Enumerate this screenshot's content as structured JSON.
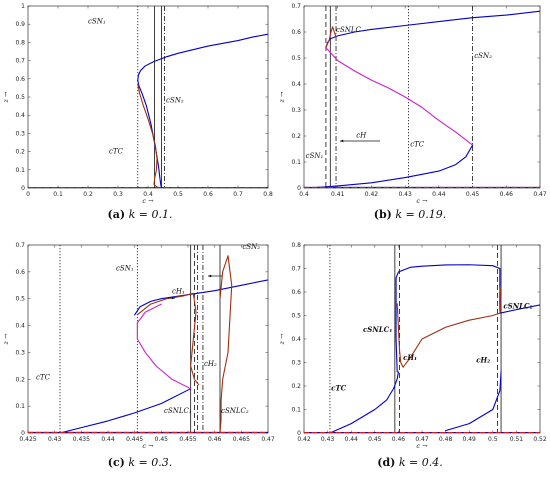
{
  "chart_data": [
    {
      "type": "line",
      "caption": {
        "label": "(a)",
        "text": " k = 0.1."
      },
      "xlabel": "c →",
      "ylabel": "z →",
      "xlim": [
        0,
        0.8
      ],
      "ylim": [
        0,
        1
      ],
      "xticks": [
        0,
        0.1,
        0.2,
        0.3,
        0.4,
        0.5,
        0.6,
        0.7,
        0.8
      ],
      "yticks": [
        0,
        0.1,
        0.2,
        0.3,
        0.4,
        0.5,
        0.6,
        0.7,
        0.8,
        0.9,
        1
      ],
      "xtick_labels": [
        "0",
        "0.1",
        "0.2",
        "0.3",
        "0.4",
        "0.5",
        "0.6",
        "0.7",
        "0.8"
      ],
      "ytick_labels": [
        "0",
        "0.1",
        "0.2",
        "0.3",
        "0.4",
        "0.5",
        "0.6",
        "0.7",
        "0.8",
        "0.9",
        "1"
      ],
      "series": [
        {
          "color": "#0000cc",
          "style": "solid",
          "x": [
            0.366,
            0.368,
            0.375,
            0.39,
            0.42,
            0.46,
            0.5,
            0.55,
            0.6,
            0.65,
            0.7,
            0.75,
            0.8
          ],
          "y": [
            0.59,
            0.62,
            0.645,
            0.67,
            0.695,
            0.72,
            0.74,
            0.76,
            0.78,
            0.795,
            0.81,
            0.83,
            0.845
          ]
        },
        {
          "color": "#0000cc",
          "style": "solid",
          "x": [
            0.366,
            0.37,
            0.38,
            0.395,
            0.41,
            0.425,
            0.435,
            0.44,
            0.443,
            0.445
          ],
          "y": [
            0.59,
            0.56,
            0.52,
            0.45,
            0.35,
            0.22,
            0.12,
            0.05,
            0.015,
            0
          ]
        },
        {
          "color": "#a03010",
          "style": "solid",
          "x": [
            0.366,
            0.372,
            0.385,
            0.4,
            0.415,
            0.425,
            0.43,
            0.428,
            0.422,
            0.42,
            0.43,
            0.445
          ],
          "y": [
            0.57,
            0.52,
            0.45,
            0.38,
            0.3,
            0.23,
            0.16,
            0.1,
            0.05,
            0.02,
            0.005,
            0
          ]
        },
        {
          "color": "#0000cc",
          "style": "solid",
          "x": [
            0,
            0.8
          ],
          "y": [
            0.002,
            0.002
          ]
        },
        {
          "color": "#cc2020",
          "style": "dashed",
          "x": [
            0,
            0.8
          ],
          "y": [
            0.002,
            0.002
          ]
        }
      ],
      "vlines": [
        {
          "x": 0.366,
          "style": "dotted",
          "label": "cSN₁"
        },
        {
          "x": 0.422,
          "style": "solid",
          "label": ""
        },
        {
          "x": 0.445,
          "style": "solid",
          "label": ""
        },
        {
          "x": 0.455,
          "style": "dashdot",
          "label": "cSN₂"
        }
      ],
      "annotations": [
        {
          "text": "cSN₁",
          "x": 0.2,
          "y": 0.905
        },
        {
          "text": "cSN₂",
          "x": 0.46,
          "y": 0.47
        },
        {
          "text": "cTC",
          "x": 0.27,
          "y": 0.19
        }
      ]
    },
    {
      "type": "line",
      "caption": {
        "label": "(b)",
        "text": " k = 0.19."
      },
      "xlabel": "c →",
      "ylabel": "z →",
      "xlim": [
        0.4,
        0.47
      ],
      "ylim": [
        0,
        0.7
      ],
      "xticks": [
        0.4,
        0.41,
        0.42,
        0.43,
        0.44,
        0.45,
        0.46,
        0.47
      ],
      "yticks": [
        0,
        0.1,
        0.2,
        0.3,
        0.4,
        0.5,
        0.6,
        0.7
      ],
      "xtick_labels": [
        "0.4",
        "0.41",
        "0.42",
        "0.43",
        "0.44",
        "0.45",
        "0.46",
        "0.47"
      ],
      "ytick_labels": [
        "0",
        "0.1",
        "0.2",
        "0.3",
        "0.4",
        "0.5",
        "0.6",
        "0.7"
      ],
      "series": [
        {
          "color": "#0000cc",
          "style": "solid",
          "x": [
            0.4065,
            0.407,
            0.408,
            0.41,
            0.415,
            0.42,
            0.43,
            0.44,
            0.45,
            0.46,
            0.47
          ],
          "y": [
            0.54,
            0.56,
            0.575,
            0.585,
            0.6,
            0.61,
            0.625,
            0.64,
            0.655,
            0.665,
            0.68
          ]
        },
        {
          "color": "#cc22cc",
          "style": "solid",
          "x": [
            0.4065,
            0.41,
            0.415,
            0.42,
            0.425,
            0.43,
            0.435,
            0.44,
            0.445,
            0.45
          ],
          "y": [
            0.54,
            0.49,
            0.45,
            0.415,
            0.385,
            0.35,
            0.31,
            0.26,
            0.215,
            0.165
          ]
        },
        {
          "color": "#0000cc",
          "style": "solid",
          "x": [
            0.45,
            0.448,
            0.445,
            0.44,
            0.43,
            0.42,
            0.41,
            0.405,
            0.401
          ],
          "y": [
            0.165,
            0.12,
            0.09,
            0.065,
            0.04,
            0.02,
            0.008,
            0.003,
            0
          ]
        },
        {
          "color": "#a03010",
          "style": "solid",
          "x": [
            0.4065,
            0.4075,
            0.408,
            0.4085,
            0.409,
            0.4095
          ],
          "y": [
            0.54,
            0.57,
            0.6,
            0.62,
            0.6,
            0.58
          ]
        },
        {
          "color": "#0000cc",
          "style": "solid",
          "x": [
            0.4,
            0.47
          ],
          "y": [
            0.002,
            0.002
          ]
        },
        {
          "color": "#cc2020",
          "style": "dashed",
          "x": [
            0.4,
            0.47
          ],
          "y": [
            0.002,
            0.002
          ]
        }
      ],
      "vlines": [
        {
          "x": 0.4065,
          "style": "dashed",
          "label": ""
        },
        {
          "x": 0.4078,
          "style": "solid",
          "label": ""
        },
        {
          "x": 0.4095,
          "style": "dashdot",
          "label": ""
        },
        {
          "x": 0.431,
          "style": "dotted",
          "label": "cTC"
        },
        {
          "x": 0.45,
          "style": "dashdot",
          "label": "cSN₂"
        }
      ],
      "annotations": [
        {
          "text": "cSNLC",
          "x": 0.4095,
          "y": 0.6
        },
        {
          "text": "cSN₁",
          "x": 0.4005,
          "y": 0.115
        },
        {
          "text": "cH",
          "x": 0.4155,
          "y": 0.195
        },
        {
          "text": "cTC",
          "x": 0.4315,
          "y": 0.16
        },
        {
          "text": "cSN₂",
          "x": 0.4505,
          "y": 0.5
        }
      ]
    },
    {
      "type": "line",
      "caption": {
        "label": "(c)",
        "text": " k = 0.3."
      },
      "xlabel": "c →",
      "ylabel": "z →",
      "xlim": [
        0.425,
        0.47
      ],
      "ylim": [
        0,
        0.7
      ],
      "xticks": [
        0.425,
        0.43,
        0.435,
        0.44,
        0.445,
        0.45,
        0.455,
        0.46,
        0.465,
        0.47
      ],
      "yticks": [
        0,
        0.1,
        0.2,
        0.3,
        0.4,
        0.5,
        0.6,
        0.7
      ],
      "xtick_labels": [
        "0.425",
        "0.43",
        "0.435",
        "0.44",
        "0.445",
        "0.45",
        "0.455",
        "0.46",
        "0.465",
        "0.47"
      ],
      "ytick_labels": [
        "0",
        "0.1",
        "0.2",
        "0.3",
        "0.4",
        "0.5",
        "0.6",
        "0.7"
      ],
      "series": [
        {
          "color": "#0000cc",
          "style": "solid",
          "x": [
            0.431,
            0.435,
            0.44,
            0.445,
            0.45,
            0.4555
          ],
          "y": [
            0,
            0.02,
            0.045,
            0.075,
            0.11,
            0.165
          ]
        },
        {
          "color": "#cc22cc",
          "style": "solid",
          "x": [
            0.4555,
            0.452,
            0.449,
            0.447,
            0.4455,
            0.4455,
            0.447,
            0.45
          ],
          "y": [
            0.165,
            0.2,
            0.25,
            0.3,
            0.35,
            0.41,
            0.45,
            0.48
          ]
        },
        {
          "color": "#0000cc",
          "style": "solid",
          "x": [
            0.445,
            0.446,
            0.448,
            0.45,
            0.455,
            0.46,
            0.465,
            0.47
          ],
          "y": [
            0.44,
            0.47,
            0.49,
            0.5,
            0.515,
            0.53,
            0.55,
            0.57
          ]
        },
        {
          "color": "#a03010",
          "style": "solid",
          "x": [
            0.4455,
            0.448,
            0.451,
            0.454,
            0.456,
            0.4565,
            0.456,
            0.4555,
            0.4562,
            0.457
          ],
          "y": [
            0.44,
            0.48,
            0.5,
            0.51,
            0.52,
            0.45,
            0.35,
            0.25,
            0.2,
            0.18
          ]
        },
        {
          "color": "#a03010",
          "style": "solid",
          "x": [
            0.461,
            0.4612,
            0.4612,
            0.4615,
            0.4625,
            0.4632,
            0.4625,
            0.4615,
            0.461
          ],
          "y": [
            0,
            0.05,
            0.12,
            0.2,
            0.3,
            0.55,
            0.66,
            0.6,
            0.5
          ]
        },
        {
          "color": "#0000cc",
          "style": "solid",
          "x": [
            0.425,
            0.47
          ],
          "y": [
            0.002,
            0.002
          ]
        },
        {
          "color": "#cc2020",
          "style": "dashed",
          "x": [
            0.425,
            0.47
          ],
          "y": [
            0.002,
            0.002
          ]
        }
      ],
      "vlines": [
        {
          "x": 0.431,
          "style": "dotted",
          "label": "cTC"
        },
        {
          "x": 0.4455,
          "style": "dotted",
          "label": "cSN₁"
        },
        {
          "x": 0.4555,
          "style": "solid",
          "label": ""
        },
        {
          "x": 0.4562,
          "style": "dashed",
          "label": ""
        },
        {
          "x": 0.4568,
          "style": "dashdot",
          "label": ""
        },
        {
          "x": 0.4578,
          "style": "dashdot",
          "label": ""
        },
        {
          "x": 0.461,
          "style": "solid",
          "label": ""
        }
      ],
      "annotations": [
        {
          "text": "cSN₁",
          "x": 0.4415,
          "y": 0.605
        },
        {
          "text": "cTC",
          "x": 0.4265,
          "y": 0.2
        },
        {
          "text": "cH₁",
          "x": 0.452,
          "y": 0.52
        },
        {
          "text": "cH₂",
          "x": 0.458,
          "y": 0.25
        },
        {
          "text": "cSNLC₁",
          "x": 0.4505,
          "y": 0.075
        },
        {
          "text": "cSNLC₂",
          "x": 0.4612,
          "y": 0.075
        },
        {
          "text": "cSN₂",
          "x": 0.4652,
          "y": 0.685
        }
      ]
    },
    {
      "type": "line",
      "caption": {
        "label": "(d)",
        "text": " k = 0.4."
      },
      "xlabel": "c →",
      "ylabel": "z →",
      "xlim": [
        0.42,
        0.52
      ],
      "ylim": [
        0,
        0.8
      ],
      "xticks": [
        0.42,
        0.43,
        0.44,
        0.45,
        0.46,
        0.47,
        0.48,
        0.49,
        0.5,
        0.51,
        0.52
      ],
      "yticks": [
        0,
        0.1,
        0.2,
        0.3,
        0.4,
        0.5,
        0.6,
        0.7,
        0.8
      ],
      "xtick_labels": [
        "0.42",
        "0.43",
        "0.44",
        "0.45",
        "0.46",
        "0.47",
        "0.48",
        "0.49",
        "0.5",
        "0.51",
        "0.52"
      ],
      "ytick_labels": [
        "0",
        "0.1",
        "0.2",
        "0.3",
        "0.4",
        "0.5",
        "0.6",
        "0.7",
        "0.8"
      ],
      "series": [
        {
          "color": "#0000cc",
          "style": "solid",
          "x": [
            0.431,
            0.44,
            0.45,
            0.455,
            0.458,
            0.4595,
            0.46
          ],
          "y": [
            0,
            0.04,
            0.1,
            0.14,
            0.19,
            0.23,
            0.26
          ]
        },
        {
          "color": "#0000cc",
          "style": "solid",
          "x": [
            0.4595,
            0.459,
            0.459,
            0.46,
            0.465,
            0.47,
            0.48,
            0.49,
            0.5,
            0.503,
            0.503
          ],
          "y": [
            0.26,
            0.4,
            0.66,
            0.685,
            0.705,
            0.71,
            0.715,
            0.716,
            0.712,
            0.7,
            0.52
          ]
        },
        {
          "color": "#0000cc",
          "style": "solid",
          "x": [
            0.42,
            0.44,
            0.46,
            0.48,
            0.5,
            0.52
          ],
          "y": [
            0.002,
            0.002,
            0.002,
            0.002,
            0.002,
            0.002
          ]
        },
        {
          "color": "#0000cc",
          "style": "solid",
          "x": [
            0.48,
            0.49,
            0.5,
            0.503,
            0.5035
          ],
          "y": [
            0.01,
            0.04,
            0.1,
            0.18,
            0.26
          ]
        },
        {
          "color": "#0000cc",
          "style": "solid",
          "x": [
            0.503,
            0.51,
            0.52
          ],
          "y": [
            0.51,
            0.525,
            0.545
          ]
        },
        {
          "color": "#a03010",
          "style": "solid",
          "x": [
            0.4595,
            0.46,
            0.4605,
            0.461,
            0.462,
            0.465,
            0.47,
            0.48,
            0.49,
            0.5,
            0.503,
            0.5035,
            0.503
          ],
          "y": [
            0.55,
            0.45,
            0.35,
            0.3,
            0.28,
            0.32,
            0.4,
            0.45,
            0.48,
            0.5,
            0.51,
            0.56,
            0.62
          ]
        },
        {
          "color": "#cc2020",
          "style": "dashed",
          "x": [
            0.42,
            0.52
          ],
          "y": [
            0.002,
            0.002
          ]
        }
      ],
      "vlines": [
        {
          "x": 0.431,
          "style": "dotted",
          "label": "cTC"
        },
        {
          "x": 0.4585,
          "style": "solid",
          "label": ""
        },
        {
          "x": 0.4605,
          "style": "dashed",
          "label": ""
        },
        {
          "x": 0.502,
          "style": "dashed",
          "label": ""
        },
        {
          "x": 0.5035,
          "style": "solid",
          "label": ""
        }
      ],
      "annotations": [
        {
          "text": "cTC",
          "x": 0.4315,
          "y": 0.18
        },
        {
          "text": "cSNLC₁",
          "x": 0.445,
          "y": 0.43
        },
        {
          "text": "cH₁",
          "x": 0.462,
          "y": 0.31
        },
        {
          "text": "cH₂",
          "x": 0.493,
          "y": 0.3
        },
        {
          "text": "cSNLC₂",
          "x": 0.5045,
          "y": 0.53
        }
      ]
    }
  ]
}
